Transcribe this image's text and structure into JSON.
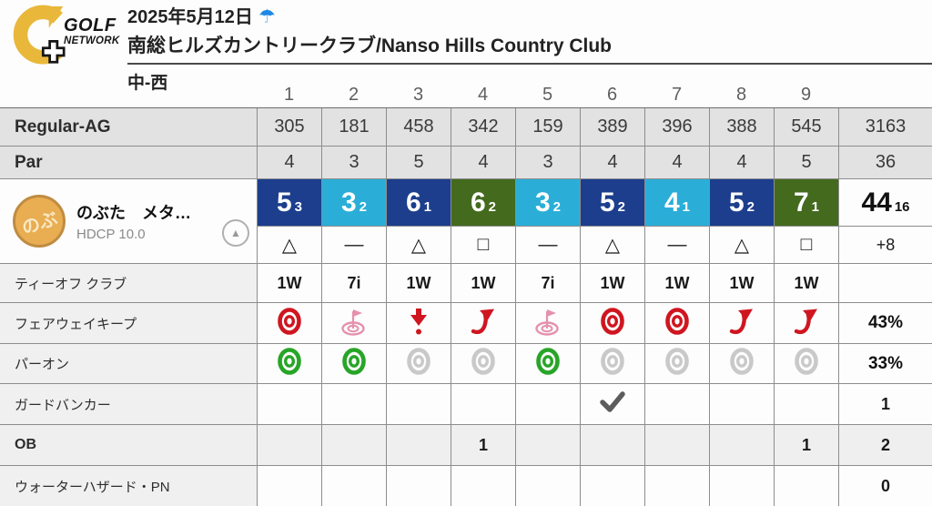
{
  "header": {
    "logo_golf": "GOLF",
    "logo_network": "NETWORK",
    "date": "2025年5月12日",
    "weather_symbol": "☂",
    "course_name": "南総ヒルズカントリークラブ/Nanso Hills Country Club",
    "course_section": "中-西"
  },
  "table": {
    "holes": [
      "1",
      "2",
      "3",
      "4",
      "5",
      "6",
      "7",
      "8",
      "9"
    ],
    "yardage": {
      "label": "Regular-AG",
      "values": [
        "305",
        "181",
        "458",
        "342",
        "159",
        "389",
        "396",
        "388",
        "545"
      ],
      "total": "3163"
    },
    "par": {
      "label": "Par",
      "values": [
        "4",
        "3",
        "5",
        "4",
        "3",
        "4",
        "4",
        "4",
        "5"
      ],
      "total": "36"
    },
    "tee_club": {
      "label": "ティーオフ クラブ",
      "values": [
        "1W",
        "7i",
        "1W",
        "1W",
        "7i",
        "1W",
        "1W",
        "1W",
        "1W"
      ],
      "total": ""
    },
    "fairway_keep": {
      "label": "フェアウェイキープ",
      "icons": [
        "target",
        "par3",
        "short",
        "right",
        "par3",
        "target",
        "target",
        "right",
        "right"
      ],
      "total": "43%"
    },
    "par_on": {
      "label": "パーオン",
      "icons": [
        "hit",
        "hit",
        "miss",
        "miss",
        "hit",
        "miss",
        "miss",
        "miss",
        "miss"
      ],
      "total": "33%"
    },
    "guard_bunker": {
      "label": "ガードバンカー",
      "checks": [
        false,
        false,
        false,
        false,
        false,
        true,
        false,
        false,
        false
      ],
      "total": "1"
    },
    "ob": {
      "label": "OB",
      "values": [
        "",
        "",
        "",
        "1",
        "",
        "",
        "",
        "",
        "1"
      ],
      "total": "2"
    },
    "water_hazard": {
      "label": "ウォーターハザード・PN",
      "values": [
        "",
        "",
        "",
        "",
        "",
        "",
        "",
        "",
        ""
      ],
      "total": "0"
    }
  },
  "player": {
    "avatar_text": "のぶ",
    "name": "のぶた　メタ…",
    "hdcp": "HDCP 10.0",
    "scores": [
      {
        "score": "5",
        "putts": "3",
        "result": "bogey"
      },
      {
        "score": "3",
        "putts": "2",
        "result": "par"
      },
      {
        "score": "6",
        "putts": "1",
        "result": "bogey"
      },
      {
        "score": "6",
        "putts": "2",
        "result": "double"
      },
      {
        "score": "3",
        "putts": "2",
        "result": "par"
      },
      {
        "score": "5",
        "putts": "2",
        "result": "bogey"
      },
      {
        "score": "4",
        "putts": "1",
        "result": "par"
      },
      {
        "score": "5",
        "putts": "2",
        "result": "bogey"
      },
      {
        "score": "7",
        "putts": "1",
        "result": "double"
      }
    ],
    "total_score": "44",
    "total_putts": "16",
    "symbols": [
      "△",
      "—",
      "△",
      "□",
      "—",
      "△",
      "—",
      "△",
      "□"
    ],
    "symbols_total": "+8"
  },
  "colors": {
    "par_blue": "#2aaed7",
    "bogey_navy": "#1c3e8d",
    "double_green": "#446a1e",
    "fairway_red": "#cf1620",
    "par3_pink": "#e591ad",
    "green_hit": "#27a527",
    "green_miss": "#c9c9c9",
    "check_gray": "#5c5c5c",
    "logo_yellow": "#e9b83b",
    "umbrella_blue": "#1e88e5"
  }
}
